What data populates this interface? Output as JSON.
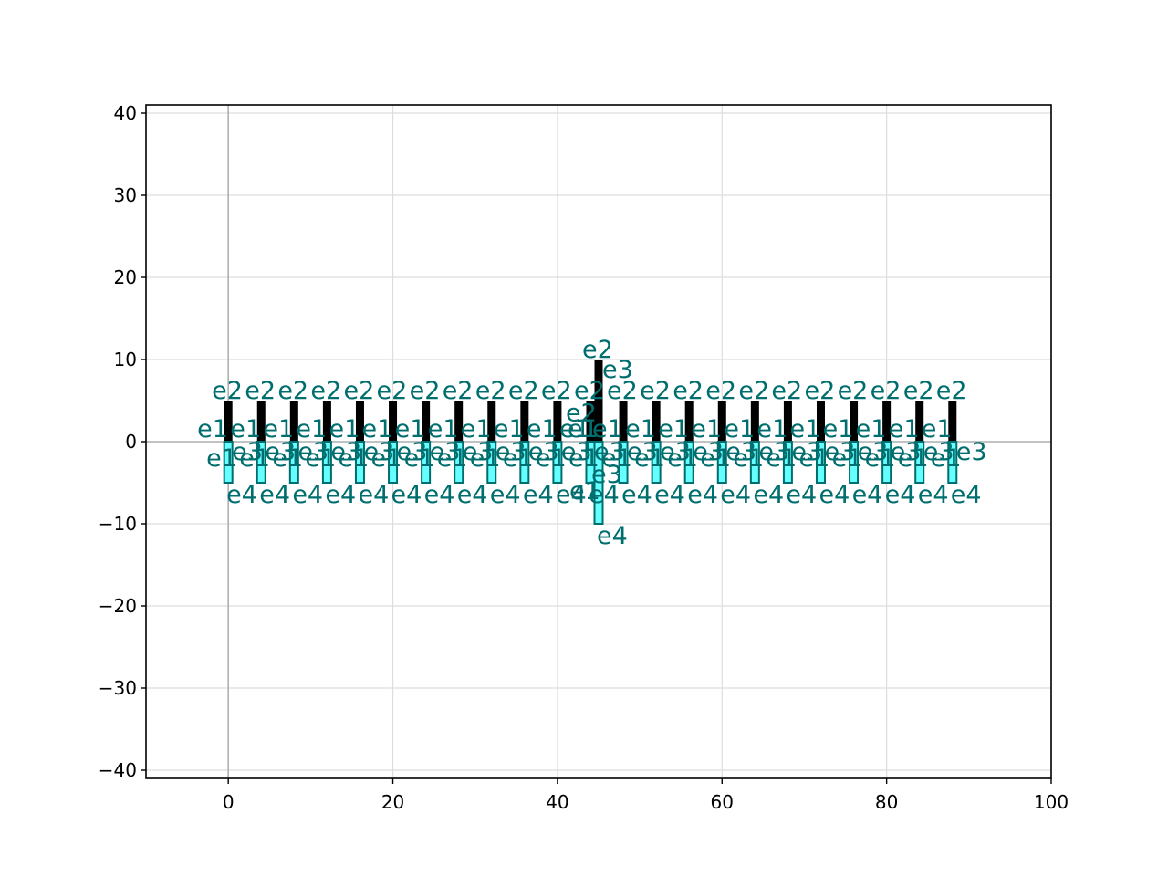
{
  "chart_data": {
    "type": "scatter",
    "title": "",
    "xlabel": "",
    "ylabel": "",
    "xlim": [
      -10,
      100
    ],
    "ylim": [
      -41,
      41
    ],
    "x_ticks": [
      0,
      20,
      40,
      60,
      80,
      100
    ],
    "y_ticks": [
      -40,
      -30,
      -20,
      -10,
      0,
      10,
      20,
      30,
      40
    ],
    "x_tick_labels": [
      "0",
      "20",
      "40",
      "60",
      "80",
      "100"
    ],
    "y_tick_labels": [
      "−40",
      "−30",
      "−20",
      "−10",
      "0",
      "10",
      "20",
      "30",
      "40"
    ],
    "grid": true,
    "zero_lines": true,
    "colors": {
      "label_color": "#006e6e",
      "upper_bar": "#000000",
      "lower_bar": "#66ffff",
      "lower_bar_edge": "#006e6e",
      "grid": "#dddddd",
      "zero_line": "#b0b0b0"
    },
    "glyphs": [
      {
        "x": 0,
        "y": 0,
        "h": 5
      },
      {
        "x": 4,
        "y": 0,
        "h": 5
      },
      {
        "x": 8,
        "y": 0,
        "h": 5
      },
      {
        "x": 12,
        "y": 0,
        "h": 5
      },
      {
        "x": 16,
        "y": 0,
        "h": 5
      },
      {
        "x": 20,
        "y": 0,
        "h": 5
      },
      {
        "x": 24,
        "y": 0,
        "h": 5
      },
      {
        "x": 28,
        "y": 0,
        "h": 5
      },
      {
        "x": 32,
        "y": 0,
        "h": 5
      },
      {
        "x": 36,
        "y": 0,
        "h": 5
      },
      {
        "x": 40,
        "y": 0,
        "h": 5
      },
      {
        "x": 44,
        "y": 0,
        "h": 5
      },
      {
        "x": 45,
        "y": 0,
        "h": 10
      },
      {
        "x": 48,
        "y": 0,
        "h": 5
      },
      {
        "x": 52,
        "y": 0,
        "h": 5
      },
      {
        "x": 56,
        "y": 0,
        "h": 5
      },
      {
        "x": 60,
        "y": 0,
        "h": 5
      },
      {
        "x": 64,
        "y": 0,
        "h": 5
      },
      {
        "x": 68,
        "y": 0,
        "h": 5
      },
      {
        "x": 72,
        "y": 0,
        "h": 5
      },
      {
        "x": 76,
        "y": 0,
        "h": 5
      },
      {
        "x": 80,
        "y": 0,
        "h": 5
      },
      {
        "x": 84,
        "y": 0,
        "h": 5
      },
      {
        "x": 88,
        "y": 0,
        "h": 5
      }
    ],
    "point_labels": [
      "e1",
      "e2",
      "e3",
      "e4"
    ]
  }
}
